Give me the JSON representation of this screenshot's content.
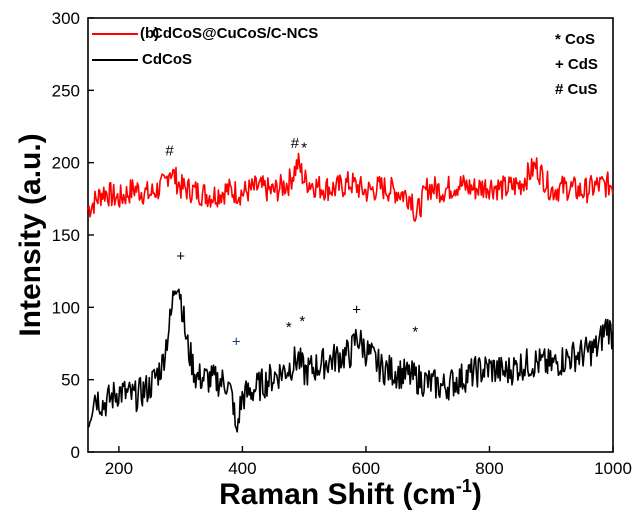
{
  "chart_data": {
    "type": "line",
    "panel_label": "(b)",
    "xlabel": "Raman Shift (cm",
    "xlabel_sup": "-1",
    "xlabel_close": ")",
    "ylabel": "Intensity (a.u.)",
    "xlim": [
      150,
      1000
    ],
    "ylim": [
      0,
      300
    ],
    "xticks": [
      200,
      400,
      600,
      800,
      1000
    ],
    "yticks": [
      0,
      50,
      100,
      150,
      200,
      250,
      300
    ],
    "grid": false,
    "legend_position": "top-left",
    "series": [
      {
        "name": "CdCoS@CuCoS/C-NCS",
        "color": "#ff0000",
        "x": [
          150,
          175,
          200,
          225,
          250,
          275,
          282,
          300,
          325,
          350,
          375,
          400,
          425,
          450,
          475,
          485,
          490,
          500,
          525,
          550,
          575,
          600,
          625,
          650,
          675,
          680,
          700,
          725,
          750,
          775,
          800,
          825,
          850,
          875,
          900,
          925,
          950,
          975,
          1000
        ],
        "y": [
          168,
          180,
          175,
          182,
          178,
          185,
          196,
          183,
          180,
          177,
          181,
          179,
          183,
          180,
          186,
          195,
          200,
          188,
          183,
          182,
          186,
          180,
          183,
          180,
          176,
          162,
          183,
          181,
          185,
          182,
          184,
          182,
          185,
          198,
          181,
          183,
          180,
          184,
          185
        ]
      },
      {
        "name": "CdCoS",
        "color": "#000000",
        "x": [
          150,
          160,
          175,
          200,
          225,
          250,
          270,
          285,
          290,
          295,
          300,
          310,
          325,
          350,
          375,
          385,
          390,
          395,
          400,
          425,
          450,
          475,
          490,
          500,
          525,
          550,
          575,
          585,
          600,
          625,
          650,
          675,
          700,
          725,
          750,
          775,
          800,
          825,
          850,
          875,
          900,
          925,
          950,
          975,
          990,
          1000
        ],
        "y": [
          20,
          40,
          33,
          42,
          38,
          45,
          60,
          95,
          115,
          120,
          108,
          75,
          52,
          50,
          48,
          35,
          10,
          28,
          38,
          45,
          52,
          58,
          65,
          55,
          60,
          65,
          68,
          80,
          70,
          58,
          55,
          52,
          48,
          45,
          50,
          55,
          58,
          55,
          60,
          62,
          60,
          65,
          68,
          72,
          88,
          80
        ]
      }
    ],
    "annotation_legend": [
      "* CoS",
      "+ CdS",
      "# CuS"
    ],
    "peak_markers": [
      {
        "symbol": "#",
        "x": 282,
        "y": 205
      },
      {
        "symbol": "#",
        "x": 485,
        "y": 210
      },
      {
        "symbol": "*",
        "x": 500,
        "y": 207
      },
      {
        "symbol": "+",
        "x": 300,
        "y": 132
      },
      {
        "symbol": "+",
        "x": 390,
        "y": 73
      },
      {
        "symbol": "*",
        "x": 475,
        "y": 83
      },
      {
        "symbol": "*",
        "x": 497,
        "y": 87
      },
      {
        "symbol": "+",
        "x": 585,
        "y": 95
      },
      {
        "symbol": "*",
        "x": 680,
        "y": 80
      }
    ]
  }
}
